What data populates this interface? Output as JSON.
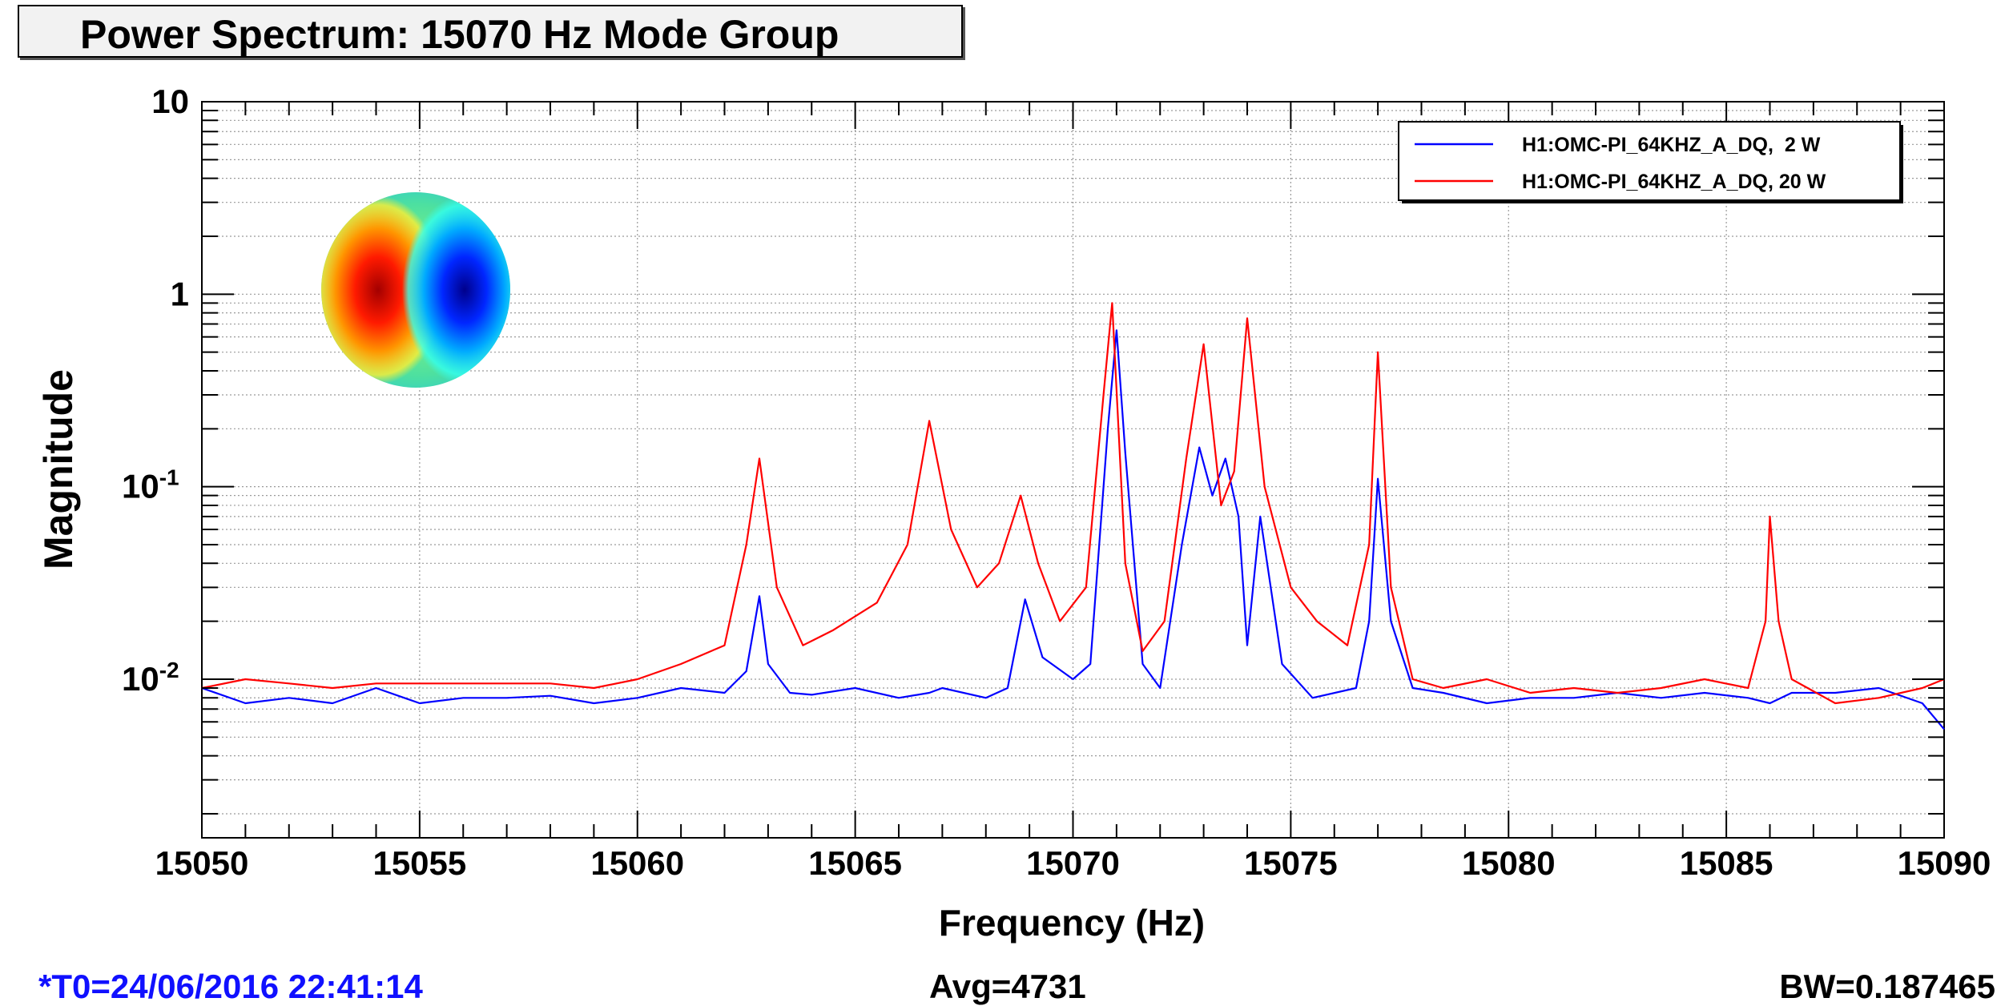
{
  "chart_data": {
    "type": "line",
    "title": "Power Spectrum: 15070 Hz Mode Group",
    "xlabel": "Frequency (Hz)",
    "ylabel": "Magnitude",
    "xlim": [
      15050,
      15090
    ],
    "ylim": [
      0.0015,
      10
    ],
    "y_scale": "log",
    "grid": true,
    "legend_position": "top-right",
    "x_ticks": [
      "15050",
      "15055",
      "15060",
      "15065",
      "15070",
      "15075",
      "15080",
      "15085",
      "15090"
    ],
    "y_ticks": [
      {
        "base": "10",
        "exp": "-2"
      },
      {
        "base": "10",
        "exp": "-1"
      },
      {
        "base": "1",
        "exp": ""
      },
      {
        "base": "10",
        "exp": ""
      }
    ],
    "series": [
      {
        "name": "H1:OMC-PI_64KHZ_A_DQ,  2 W",
        "color": "#0000ff",
        "x": [
          15050,
          15051,
          15052,
          15053,
          15054,
          15055,
          15056,
          15057,
          15058,
          15059,
          15060,
          15061,
          15062,
          15062.5,
          15062.8,
          15063,
          15063.5,
          15064,
          15065,
          15066,
          15066.7,
          15067,
          15068,
          15068.5,
          15068.9,
          15069.3,
          15070,
          15070.4,
          15070.8,
          15071.0,
          15071.2,
          15071.6,
          15072,
          15072.5,
          15072.9,
          15073.2,
          15073.5,
          15073.8,
          15074.0,
          15074.3,
          15074.8,
          15075.5,
          15076.5,
          15076.8,
          15077.0,
          15077.3,
          15077.8,
          15078.5,
          15079.5,
          15080.5,
          15081.5,
          15082.5,
          15083.5,
          15084.5,
          15085.5,
          15086.0,
          15086.5,
          15087.5,
          15088.5,
          15089.5,
          15090
        ],
        "y": [
          0.009,
          0.0075,
          0.008,
          0.0075,
          0.009,
          0.0075,
          0.008,
          0.008,
          0.0082,
          0.0075,
          0.008,
          0.009,
          0.0085,
          0.011,
          0.027,
          0.012,
          0.0085,
          0.0083,
          0.009,
          0.008,
          0.0085,
          0.009,
          0.008,
          0.009,
          0.026,
          0.013,
          0.01,
          0.012,
          0.2,
          0.65,
          0.15,
          0.012,
          0.009,
          0.05,
          0.16,
          0.09,
          0.14,
          0.07,
          0.015,
          0.07,
          0.012,
          0.008,
          0.009,
          0.02,
          0.11,
          0.02,
          0.009,
          0.0085,
          0.0075,
          0.008,
          0.008,
          0.0085,
          0.008,
          0.0085,
          0.008,
          0.0075,
          0.0085,
          0.0085,
          0.009,
          0.0075,
          0.0055
        ]
      },
      {
        "name": "H1:OMC-PI_64KHZ_A_DQ, 20 W",
        "color": "#ff0000",
        "x": [
          15050,
          15051,
          15052,
          15053,
          15054,
          15055,
          15056,
          15057,
          15058,
          15059,
          15060,
          15061,
          15062,
          15062.5,
          15062.8,
          15063.2,
          15063.8,
          15064.5,
          15065.5,
          15066.2,
          15066.7,
          15067.2,
          15067.8,
          15068.3,
          15068.8,
          15069.2,
          15069.7,
          15070.3,
          15070.7,
          15070.9,
          15071.2,
          15071.6,
          15072.1,
          15072.6,
          15073.0,
          15073.4,
          15073.7,
          15074.0,
          15074.4,
          15075.0,
          15075.6,
          15076.3,
          15076.8,
          15077.0,
          15077.3,
          15077.8,
          15078.5,
          15079.5,
          15080.5,
          15081.5,
          15082.5,
          15083.5,
          15084.5,
          15085.5,
          15085.9,
          15086.0,
          15086.2,
          15086.5,
          15087.5,
          15088.5,
          15089.5,
          15090
        ],
        "y": [
          0.009,
          0.01,
          0.0095,
          0.009,
          0.0095,
          0.0095,
          0.0095,
          0.0095,
          0.0095,
          0.009,
          0.01,
          0.012,
          0.015,
          0.05,
          0.14,
          0.03,
          0.015,
          0.018,
          0.025,
          0.05,
          0.22,
          0.06,
          0.03,
          0.04,
          0.09,
          0.04,
          0.02,
          0.03,
          0.3,
          0.9,
          0.04,
          0.014,
          0.02,
          0.14,
          0.55,
          0.08,
          0.12,
          0.75,
          0.1,
          0.03,
          0.02,
          0.015,
          0.05,
          0.5,
          0.03,
          0.01,
          0.009,
          0.01,
          0.0085,
          0.009,
          0.0085,
          0.009,
          0.01,
          0.009,
          0.02,
          0.07,
          0.02,
          0.01,
          0.0075,
          0.008,
          0.009,
          0.01
        ]
      }
    ],
    "inset": "mode-shape-image"
  },
  "footer": {
    "time": "*T0=24/06/2016 22:41:14",
    "avg": "Avg=4731",
    "bw": "BW=0.187465"
  }
}
